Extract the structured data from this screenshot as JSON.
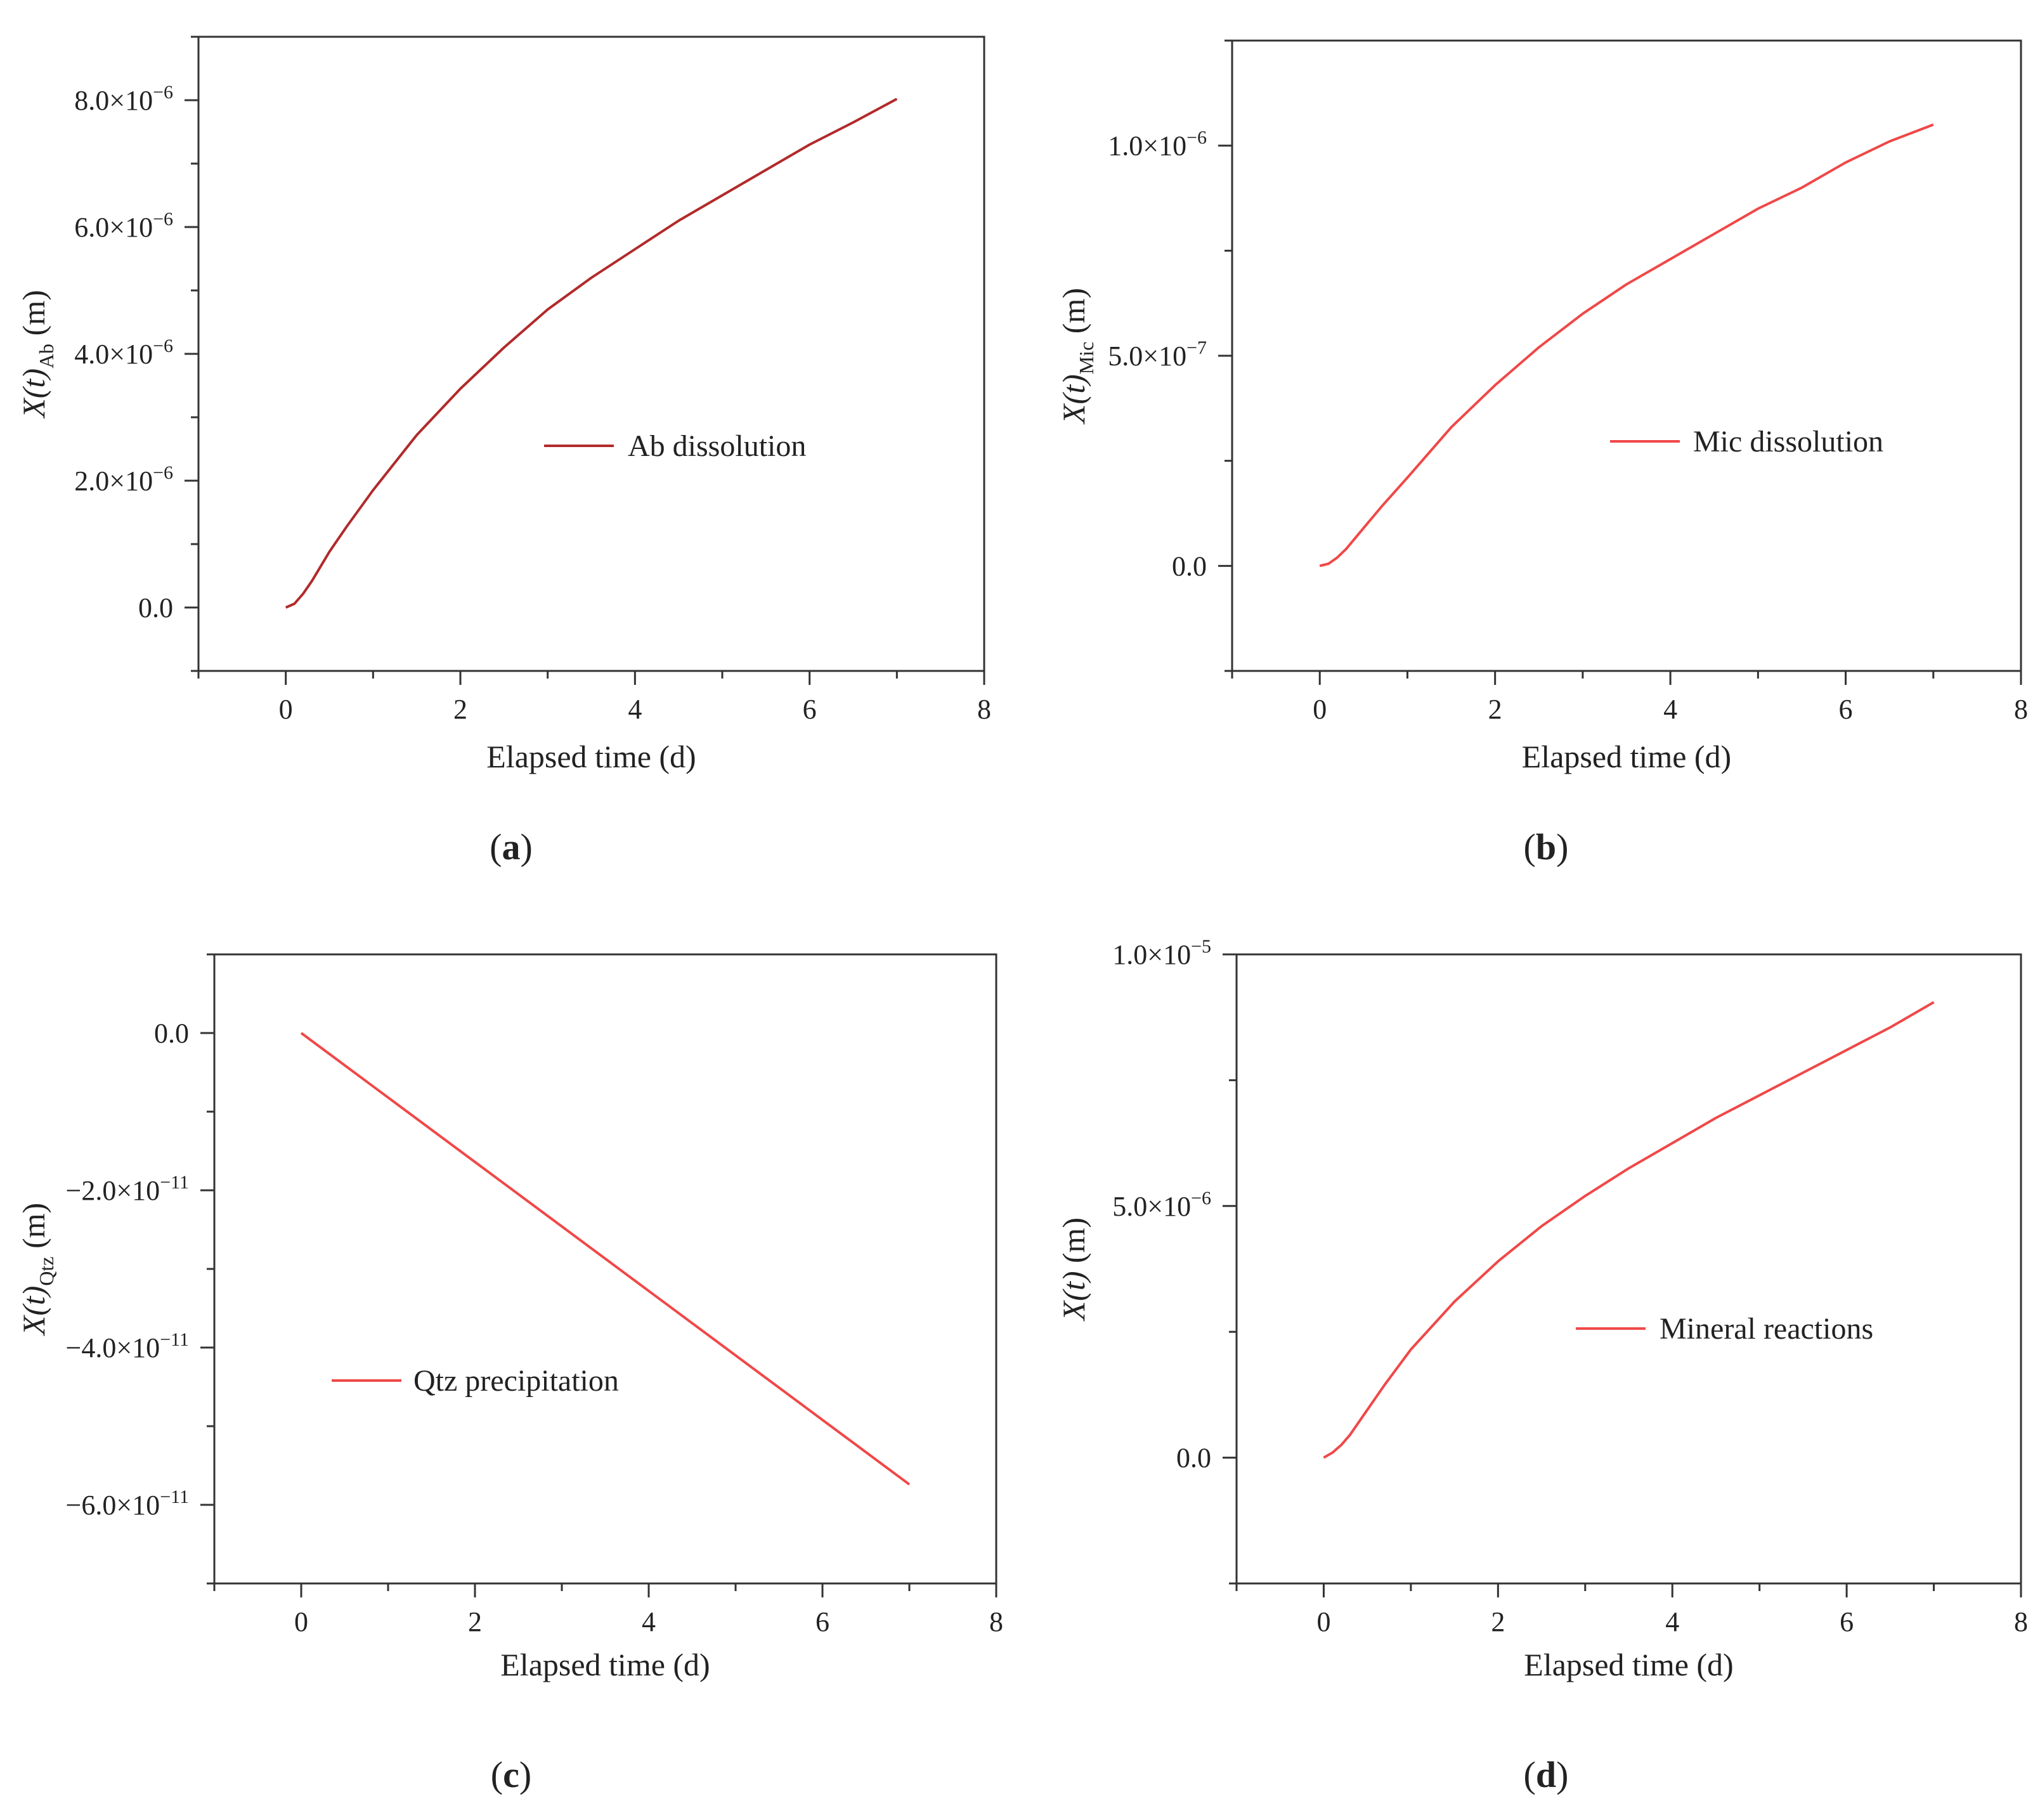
{
  "figure": {
    "panels": [
      "(a)",
      "(b)",
      "(c)",
      "(d)"
    ],
    "panel_label_parts": [
      {
        "open": "(",
        "letter": "a",
        "close": ")"
      },
      {
        "open": "(",
        "letter": "b",
        "close": ")"
      },
      {
        "open": "(",
        "letter": "c",
        "close": ")"
      },
      {
        "open": "(",
        "letter": "d",
        "close": ")"
      }
    ]
  },
  "chart_data": [
    {
      "type": "line",
      "panel": "(a)",
      "xlabel": "Elapsed time (d)",
      "ylabel": "X(t)Ab (m)",
      "ylabel_parts": {
        "main": "X(t)",
        "sub": "Ab",
        "unit": " (m)"
      },
      "xlim": [
        -1,
        8
      ],
      "ylim": [
        -1e-06,
        9e-06
      ],
      "xticks": [
        0,
        2,
        4,
        6,
        8
      ],
      "xtick_labels": [
        "0",
        "2",
        "4",
        "6",
        "8"
      ],
      "yticks": [
        0,
        2e-06,
        4e-06,
        6e-06,
        8e-06
      ],
      "ytick_labels": [
        {
          "mant": "0.0",
          "exp": ""
        },
        {
          "mant": "2.0×10",
          "exp": "−6"
        },
        {
          "mant": "4.0×10",
          "exp": "−6"
        },
        {
          "mant": "6.0×10",
          "exp": "−6"
        },
        {
          "mant": "8.0×10",
          "exp": "−6"
        }
      ],
      "legend_position": "center",
      "grid": false,
      "series": [
        {
          "name": "Ab dissolution",
          "color": "#b22a2a",
          "x": [
            0,
            0.1,
            0.2,
            0.3,
            0.5,
            0.7,
            1.0,
            1.5,
            2.0,
            2.5,
            3.0,
            3.5,
            4.0,
            4.5,
            5.0,
            5.5,
            6.0,
            6.5,
            7.0
          ],
          "y": [
            0,
            6e-08,
            2.2e-07,
            4.2e-07,
            8.8e-07,
            1.28e-06,
            1.85e-06,
            2.72e-06,
            3.45e-06,
            4.1e-06,
            4.7e-06,
            5.2e-06,
            5.65e-06,
            6.1e-06,
            6.5e-06,
            6.9e-06,
            7.3e-06,
            7.65e-06,
            8.02e-06
          ]
        }
      ]
    },
    {
      "type": "line",
      "panel": "(b)",
      "xlabel": "Elapsed time (d)",
      "ylabel": "X(t)Mic (m)",
      "ylabel_parts": {
        "main": "X(t)",
        "sub": "Mic",
        "unit": " (m)"
      },
      "xlim": [
        -1,
        8
      ],
      "ylim": [
        -2.5e-07,
        1.25e-06
      ],
      "xticks": [
        0,
        2,
        4,
        6,
        8
      ],
      "xtick_labels": [
        "0",
        "2",
        "4",
        "6",
        "8"
      ],
      "yticks": [
        0,
        5e-07,
        1e-06
      ],
      "ytick_labels": [
        {
          "mant": "0.0",
          "exp": ""
        },
        {
          "mant": "5.0×10",
          "exp": "−7"
        },
        {
          "mant": "1.0×10",
          "exp": "−6"
        }
      ],
      "legend_position": "center",
      "grid": false,
      "series": [
        {
          "name": "Mic dissolution",
          "color": "#f04848",
          "x": [
            0,
            0.1,
            0.2,
            0.3,
            0.5,
            0.7,
            1.0,
            1.5,
            2.0,
            2.5,
            3.0,
            3.5,
            4.0,
            4.5,
            5.0,
            5.5,
            6.0,
            6.5,
            7.0
          ],
          "y": [
            0,
            5e-09,
            2e-08,
            4e-08,
            9e-08,
            1.4e-07,
            2.1e-07,
            3.3e-07,
            4.3e-07,
            5.2e-07,
            6e-07,
            6.7e-07,
            7.3e-07,
            7.9e-07,
            8.5e-07,
            9e-07,
            9.6e-07,
            1.01e-06,
            1.05e-06
          ]
        }
      ]
    },
    {
      "type": "line",
      "panel": "(c)",
      "xlabel": "Elapsed time (d)",
      "ylabel": "X(t)Qtz (m)",
      "ylabel_parts": {
        "main": "X(t)",
        "sub": "Qtz",
        "unit": " (m)"
      },
      "xlim": [
        -1,
        8
      ],
      "ylim": [
        -7e-11,
        1e-11
      ],
      "xticks": [
        0,
        2,
        4,
        6,
        8
      ],
      "xtick_labels": [
        "0",
        "2",
        "4",
        "6",
        "8"
      ],
      "yticks": [
        0,
        -2e-11,
        -4e-11,
        -6e-11
      ],
      "ytick_labels": [
        {
          "mant": "0.0",
          "exp": ""
        },
        {
          "mant": "−2.0×10",
          "exp": "−11"
        },
        {
          "mant": "−4.0×10",
          "exp": "−11"
        },
        {
          "mant": "−6.0×10",
          "exp": "−11"
        }
      ],
      "legend_position": "lower-left",
      "grid": false,
      "series": [
        {
          "name": "Qtz precipitation",
          "color": "#f04848",
          "x": [
            0,
            1,
            2,
            3,
            4,
            5,
            6,
            7
          ],
          "y": [
            0,
            -8.2e-12,
            -1.64e-11,
            -2.46e-11,
            -3.28e-11,
            -4.1e-11,
            -4.92e-11,
            -5.74e-11
          ]
        }
      ]
    },
    {
      "type": "line",
      "panel": "(d)",
      "xlabel": "Elapsed time (d)",
      "ylabel": "X(t) (m)",
      "ylabel_parts": {
        "main": "X(t)",
        "sub": "",
        "unit": " (m)"
      },
      "xlim": [
        -1,
        8
      ],
      "ylim": [
        -2.5e-06,
        1e-05
      ],
      "xticks": [
        0,
        2,
        4,
        6,
        8
      ],
      "xtick_labels": [
        "0",
        "2",
        "4",
        "6",
        "8"
      ],
      "yticks": [
        0,
        5e-06,
        1e-05
      ],
      "ytick_labels": [
        {
          "mant": "0.0",
          "exp": ""
        },
        {
          "mant": "5.0×10",
          "exp": "−6"
        },
        {
          "mant": "1.0×10",
          "exp": "−5"
        }
      ],
      "legend_position": "center",
      "grid": false,
      "series": [
        {
          "name": "Mineral reactions",
          "color": "#f04848",
          "x": [
            0,
            0.1,
            0.2,
            0.3,
            0.5,
            0.7,
            1.0,
            1.5,
            2.0,
            2.5,
            3.0,
            3.5,
            4.0,
            4.5,
            5.0,
            5.5,
            6.0,
            6.5,
            7.0
          ],
          "y": [
            0,
            1e-07,
            2.5e-07,
            4.5e-07,
            9.5e-07,
            1.45e-06,
            2.15e-06,
            3.1e-06,
            3.9e-06,
            4.6e-06,
            5.2e-06,
            5.75e-06,
            6.25e-06,
            6.75e-06,
            7.2e-06,
            7.65e-06,
            8.1e-06,
            8.55e-06,
            9.05e-06
          ]
        }
      ]
    }
  ]
}
